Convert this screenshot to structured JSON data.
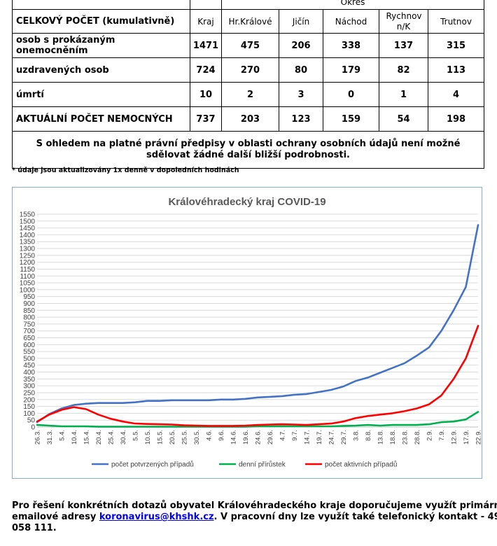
{
  "table": {
    "group_header": "Okres",
    "corner_label": "CELKOVÝ POČET (kumulativně)",
    "columns": [
      "Kraj",
      "Hr.Králové",
      "Jičín",
      "Náchod",
      "Rychnov n/K",
      "Trutnov"
    ],
    "rows": [
      {
        "label": "osob s prokázaným onemocněním",
        "values": [
          "1471",
          "475",
          "206",
          "338",
          "137",
          "315"
        ]
      },
      {
        "label": "uzdravených osob",
        "values": [
          "724",
          "270",
          "80",
          "179",
          "82",
          "113"
        ]
      },
      {
        "label": "úmrtí",
        "values": [
          "10",
          "2",
          "3",
          "0",
          "1",
          "4"
        ]
      },
      {
        "label": "AKTUÁLNÍ POČET NEMOCNÝCH",
        "values": [
          "737",
          "203",
          "123",
          "159",
          "54",
          "198"
        ]
      }
    ],
    "note": "S ohledem na platné právní předpisy v oblasti ochrany osobních údajů není možné sdělovat žádné další bližší podrobnosti."
  },
  "footnote": "* údaje jsou aktualizovány 1x denně v dopoledních hodinách",
  "chart_data": {
    "type": "line",
    "title": "Královéhradecký kraj COVID-19",
    "xlabel": "",
    "ylabel": "",
    "ylim": [
      0,
      1550
    ],
    "y_ticks": [
      0,
      50,
      100,
      150,
      200,
      250,
      300,
      350,
      400,
      450,
      500,
      550,
      600,
      650,
      700,
      750,
      800,
      850,
      900,
      950,
      1000,
      1050,
      1100,
      1150,
      1200,
      1250,
      1300,
      1350,
      1400,
      1450,
      1500,
      1550
    ],
    "x_tick_labels": [
      "26.3.",
      "31.3.",
      "5.4.",
      "10.4.",
      "15.4.",
      "20.4.",
      "25.4.",
      "30.4.",
      "5.5.",
      "10.5.",
      "15.5.",
      "20.5.",
      "25.5.",
      "30.5.",
      "4.6.",
      "9.6.",
      "14.6.",
      "19.6.",
      "24.6.",
      "29.6.",
      "4.7.",
      "9.7.",
      "14.7.",
      "19.7.",
      "24.7.",
      "29.7.",
      "3.8.",
      "8.8.",
      "13.8.",
      "18.8.",
      "23.8.",
      "28.8.",
      "2.9.",
      "7.9.",
      "12.9.",
      "17.9.",
      "22.9."
    ],
    "grid": true,
    "legend_position": "bottom",
    "series": [
      {
        "name": "počet potvrzených případů",
        "color": "#4472c4",
        "x": [
          "26.3.",
          "31.3.",
          "5.4.",
          "10.4.",
          "15.4.",
          "20.4.",
          "25.4.",
          "30.4.",
          "5.5.",
          "10.5.",
          "15.5.",
          "20.5.",
          "25.5.",
          "30.5.",
          "4.6.",
          "9.6.",
          "14.6.",
          "19.6.",
          "24.6.",
          "29.6.",
          "4.7.",
          "9.7.",
          "14.7.",
          "19.7.",
          "24.7.",
          "29.7.",
          "3.8.",
          "8.8.",
          "13.8.",
          "18.8.",
          "23.8.",
          "28.8.",
          "2.9.",
          "7.9.",
          "12.9.",
          "17.9.",
          "22.9."
        ],
        "values": [
          35,
          95,
          135,
          160,
          170,
          175,
          175,
          175,
          180,
          190,
          190,
          195,
          195,
          195,
          195,
          200,
          200,
          205,
          215,
          220,
          225,
          235,
          240,
          255,
          270,
          295,
          335,
          360,
          395,
          430,
          465,
          520,
          580,
          700,
          850,
          1020,
          1471
        ]
      },
      {
        "name": "denní přírůstek",
        "color": "#00b050",
        "x": [
          "26.3.",
          "31.3.",
          "5.4.",
          "10.4.",
          "15.4.",
          "20.4.",
          "25.4.",
          "30.4.",
          "5.5.",
          "10.5.",
          "15.5.",
          "20.5.",
          "25.5.",
          "30.5.",
          "4.6.",
          "9.6.",
          "14.6.",
          "19.6.",
          "24.6.",
          "29.6.",
          "4.7.",
          "9.7.",
          "14.7.",
          "19.7.",
          "24.7.",
          "29.7.",
          "3.8.",
          "8.8.",
          "13.8.",
          "18.8.",
          "23.8.",
          "28.8.",
          "2.9.",
          "7.9.",
          "12.9.",
          "17.9.",
          "22.9."
        ],
        "values": [
          15,
          10,
          5,
          5,
          5,
          2,
          2,
          2,
          2,
          2,
          2,
          2,
          2,
          2,
          2,
          2,
          2,
          2,
          5,
          5,
          5,
          5,
          5,
          5,
          5,
          8,
          10,
          15,
          10,
          15,
          15,
          15,
          20,
          35,
          40,
          55,
          110
        ]
      },
      {
        "name": "počet aktivních případů",
        "color": "#ff0000",
        "x": [
          "26.3.",
          "31.3.",
          "5.4.",
          "10.4.",
          "15.4.",
          "20.4.",
          "25.4.",
          "30.4.",
          "5.5.",
          "10.5.",
          "15.5.",
          "20.5.",
          "25.5.",
          "30.5.",
          "4.6.",
          "9.6.",
          "14.6.",
          "19.6.",
          "24.6.",
          "29.6.",
          "4.7.",
          "9.7.",
          "14.7.",
          "19.7.",
          "24.7.",
          "29.7.",
          "3.8.",
          "8.8.",
          "13.8.",
          "18.8.",
          "23.8.",
          "28.8.",
          "2.9.",
          "7.9.",
          "12.9.",
          "17.9.",
          "22.9."
        ],
        "values": [
          40,
          90,
          125,
          145,
          130,
          90,
          60,
          40,
          25,
          22,
          20,
          18,
          12,
          10,
          8,
          8,
          8,
          10,
          15,
          18,
          20,
          18,
          15,
          20,
          25,
          40,
          65,
          80,
          90,
          100,
          115,
          135,
          165,
          230,
          350,
          500,
          737
        ]
      }
    ]
  },
  "paragraph": {
    "line1": "Pro řešení konkrétních dotazů obyvatel Královéhradeckého kraje doporučujeme využít primární",
    "line2_before": "emailové adresy ",
    "email": "koronavirus@khshk.cz",
    "line2_after": ". V pracovní dny lze využít také telefonický kontakt - 49",
    "line3": "058 111."
  }
}
